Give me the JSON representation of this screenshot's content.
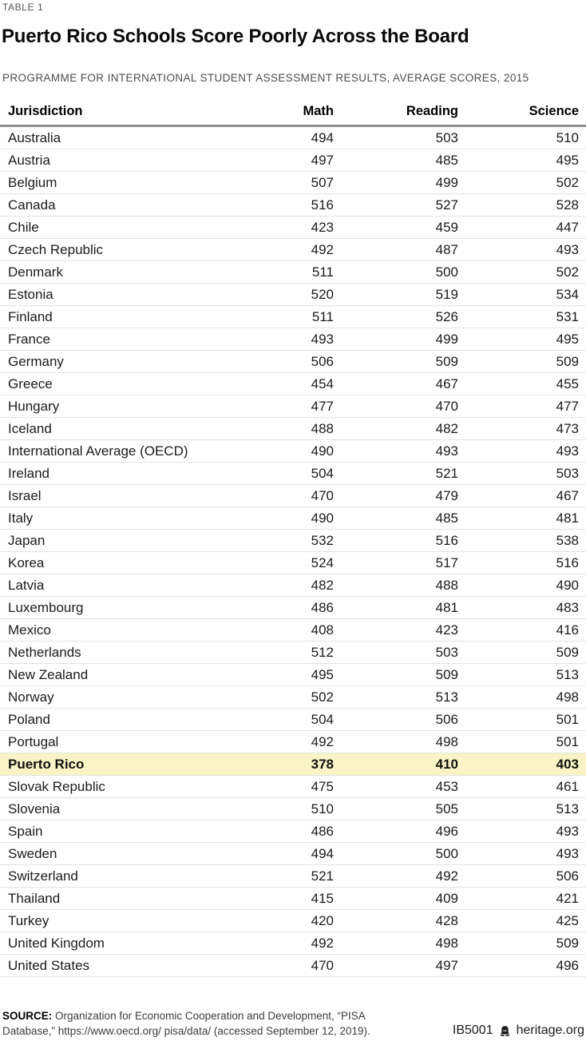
{
  "header": {
    "table_label": "TABLE 1",
    "title": "Puerto Rico Schools Score Poorly Across the Board",
    "subtitle": "PROGRAMME FOR INTERNATIONAL STUDENT ASSESSMENT RESULTS, AVERAGE SCORES, 2015"
  },
  "chart_data": {
    "type": "table",
    "title": "Puerto Rico Schools Score Poorly Across the Board",
    "subtitle": "PROGRAMME FOR INTERNATIONAL STUDENT ASSESSMENT RESULTS, AVERAGE SCORES, 2015",
    "columns": [
      "Jurisdiction",
      "Math",
      "Reading",
      "Science"
    ],
    "highlight_row": "Puerto Rico",
    "highlight_color": "#FAF3C6",
    "rows": [
      [
        "Australia",
        494,
        503,
        510
      ],
      [
        "Austria",
        497,
        485,
        495
      ],
      [
        "Belgium",
        507,
        499,
        502
      ],
      [
        "Canada",
        516,
        527,
        528
      ],
      [
        "Chile",
        423,
        459,
        447
      ],
      [
        "Czech Republic",
        492,
        487,
        493
      ],
      [
        "Denmark",
        511,
        500,
        502
      ],
      [
        "Estonia",
        520,
        519,
        534
      ],
      [
        "Finland",
        511,
        526,
        531
      ],
      [
        "France",
        493,
        499,
        495
      ],
      [
        "Germany",
        506,
        509,
        509
      ],
      [
        "Greece",
        454,
        467,
        455
      ],
      [
        "Hungary",
        477,
        470,
        477
      ],
      [
        "Iceland",
        488,
        482,
        473
      ],
      [
        "International Average (OECD)",
        490,
        493,
        493
      ],
      [
        "Ireland",
        504,
        521,
        503
      ],
      [
        "Israel",
        470,
        479,
        467
      ],
      [
        "Italy",
        490,
        485,
        481
      ],
      [
        "Japan",
        532,
        516,
        538
      ],
      [
        "Korea",
        524,
        517,
        516
      ],
      [
        "Latvia",
        482,
        488,
        490
      ],
      [
        "Luxembourg",
        486,
        481,
        483
      ],
      [
        "Mexico",
        408,
        423,
        416
      ],
      [
        "Netherlands",
        512,
        503,
        509
      ],
      [
        "New Zealand",
        495,
        509,
        513
      ],
      [
        "Norway",
        502,
        513,
        498
      ],
      [
        "Poland",
        504,
        506,
        501
      ],
      [
        "Portugal",
        492,
        498,
        501
      ],
      [
        "Puerto Rico",
        378,
        410,
        403
      ],
      [
        "Slovak Republic",
        475,
        453,
        461
      ],
      [
        "Slovenia",
        510,
        505,
        513
      ],
      [
        "Spain",
        486,
        496,
        493
      ],
      [
        "Sweden",
        494,
        500,
        493
      ],
      [
        "Switzerland",
        521,
        492,
        506
      ],
      [
        "Thailand",
        415,
        409,
        421
      ],
      [
        "Turkey",
        420,
        428,
        425
      ],
      [
        "United Kingdom",
        492,
        498,
        509
      ],
      [
        "United States",
        470,
        497,
        496
      ]
    ]
  },
  "footer": {
    "source_label": "SOURCE:",
    "source_text": "Organization for Economic Cooperation and Development, “PISA Database,” https://www.oecd.org/ pisa/data/ (accessed September 12, 2019).",
    "report_id": "IB5001",
    "brand": "heritage.org",
    "icon": "liberty-bell-icon"
  }
}
